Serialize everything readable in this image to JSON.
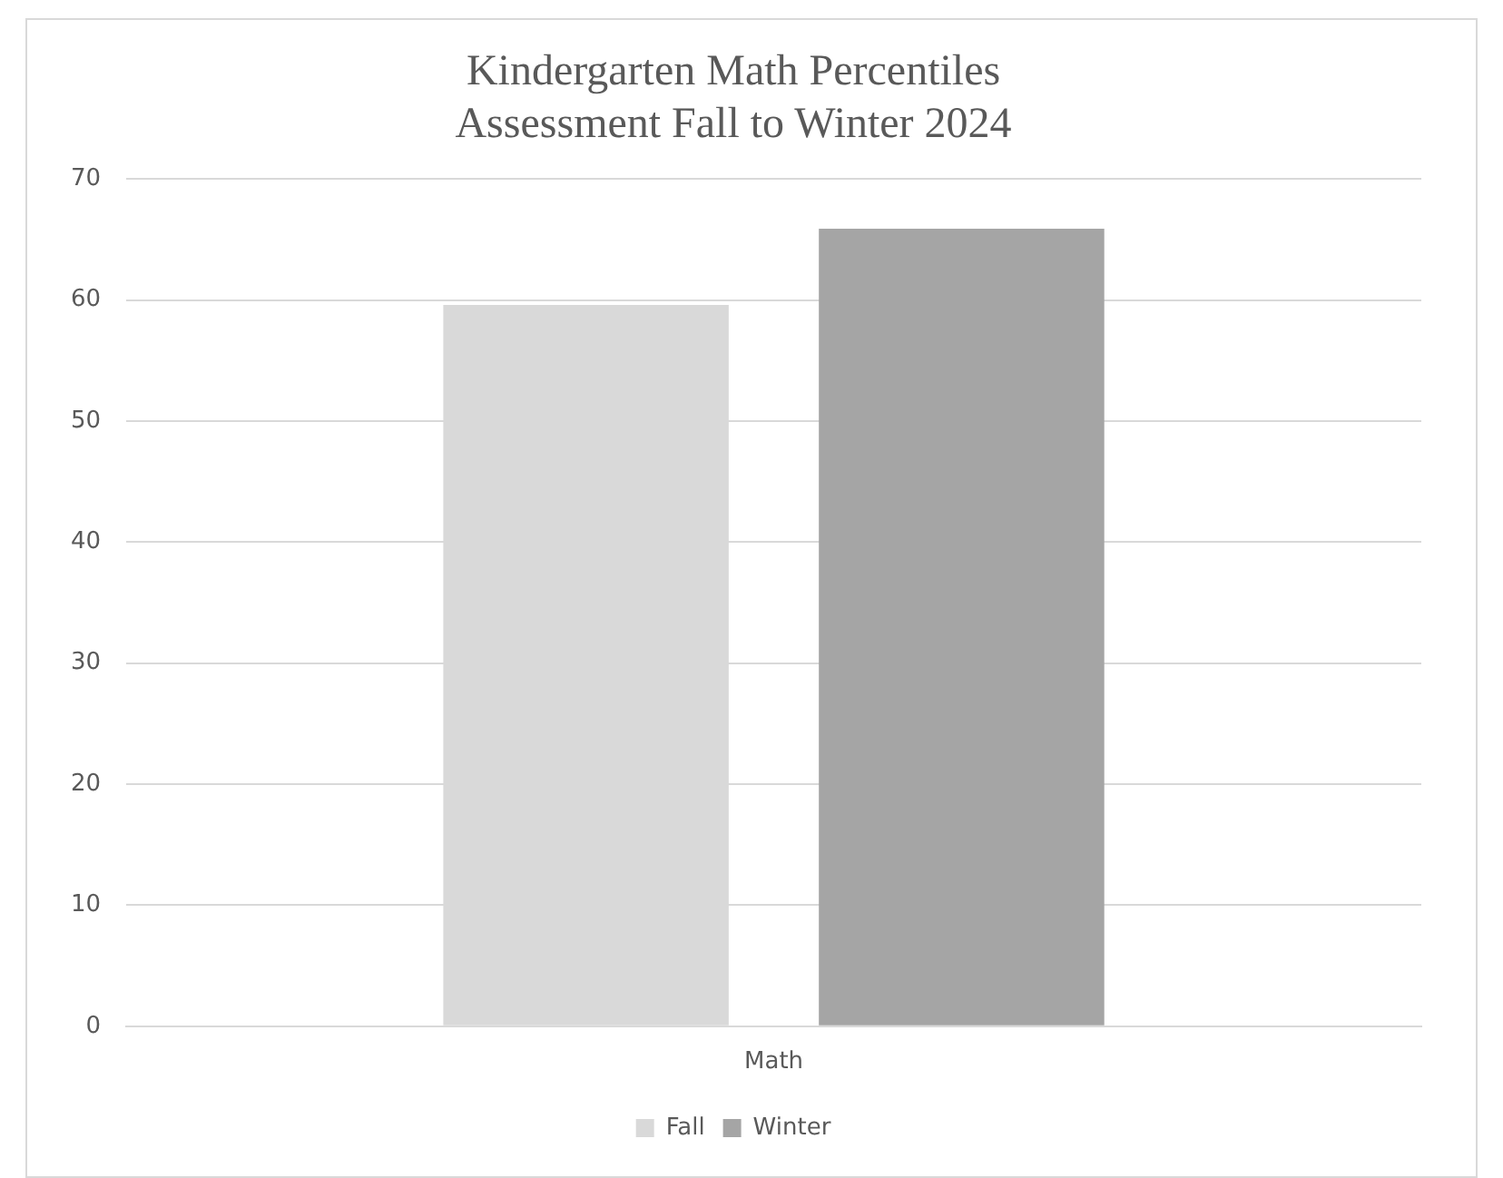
{
  "chart_data": {
    "type": "bar",
    "title": [
      "Kindergarten Math Percentiles",
      "Assessment Fall to Winter 2024"
    ],
    "categories": [
      "Math"
    ],
    "series": [
      {
        "name": "Fall",
        "color": "#d9d9d9",
        "values": [
          59.6
        ]
      },
      {
        "name": "Winter",
        "color": "#a5a5a5",
        "values": [
          65.9
        ]
      }
    ],
    "ylim": [
      0,
      70
    ],
    "yticks": [
      0,
      10,
      20,
      30,
      40,
      50,
      60,
      70
    ],
    "grid": "y",
    "legend": "bottom"
  }
}
